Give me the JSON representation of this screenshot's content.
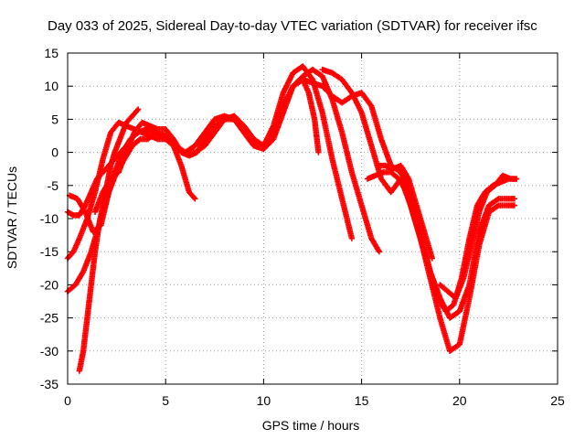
{
  "chart_data": {
    "type": "scatter",
    "title": "Day 033 of 2025, Sidereal Day-to-day VTEC variation (SDTVAR) for receiver ifsc",
    "xlabel": "GPS time / hours",
    "ylabel": "SDTVAR / TECUs",
    "xlim": [
      0,
      25
    ],
    "ylim": [
      -35,
      15
    ],
    "x_ticks": [
      0,
      5,
      10,
      15,
      20,
      25
    ],
    "y_ticks": [
      -35,
      -30,
      -25,
      -20,
      -15,
      -10,
      -5,
      0,
      5,
      10,
      15
    ],
    "grid": true,
    "legend": "none",
    "marker": "plus",
    "color": "#ff0000",
    "series": [
      {
        "x": [
          0.0,
          0.3,
          0.6,
          1.0,
          1.4,
          1.8,
          2.2,
          2.6,
          3.0,
          3.4,
          3.8,
          4.2,
          4.6,
          5.0,
          5.4,
          5.8,
          6.2,
          6.5
        ],
        "y": [
          -16,
          -15,
          -13,
          -10,
          -6,
          -1,
          3,
          4.5,
          4,
          3.5,
          3,
          2.5,
          2,
          2,
          1,
          -2,
          -6,
          -7
        ]
      },
      {
        "x": [
          0.0,
          0.4,
          0.8,
          1.2,
          1.6,
          2.0,
          2.4,
          2.8,
          3.2,
          3.6,
          4.0,
          4.5,
          5.0,
          5.5,
          6.0,
          6.5,
          7.0,
          7.5,
          8.0,
          8.5,
          9.0,
          9.5,
          10.0,
          10.5,
          11.0,
          11.5,
          12.0,
          12.3,
          12.6,
          12.8
        ],
        "y": [
          -21,
          -20,
          -18,
          -15,
          -11,
          -7,
          -3,
          0,
          2,
          3,
          3.5,
          3,
          2.5,
          1,
          0,
          0,
          1,
          3,
          5,
          5,
          3,
          1,
          0.5,
          2,
          6,
          10,
          11,
          9,
          5,
          0
        ]
      },
      {
        "x": [
          0.6,
          0.8,
          1.0,
          1.2,
          1.4,
          1.6,
          1.8,
          2.0,
          2.2,
          2.4,
          2.6,
          2.8,
          3.0,
          3.3,
          3.6
        ],
        "y": [
          -33,
          -30,
          -25,
          -20,
          -15,
          -11,
          -8,
          -5,
          -2,
          0,
          1.5,
          3,
          4.5,
          5.5,
          6.5
        ]
      },
      {
        "x": [
          0.0,
          0.3,
          0.6,
          0.9,
          1.2,
          1.5,
          1.8,
          2.1,
          2.4,
          2.7,
          3.0
        ],
        "y": [
          -9,
          -9.5,
          -9.5,
          -8,
          -6,
          -4,
          -3,
          -2,
          -1,
          0,
          1
        ]
      },
      {
        "x": [
          0.1,
          0.5,
          0.9,
          1.3,
          1.7,
          2.1,
          2.5,
          2.9,
          3.3,
          3.7,
          4.1,
          4.5,
          5.0,
          5.5,
          6.0,
          6.5,
          7.0,
          7.5,
          8.0,
          8.5,
          9.0,
          9.5,
          10.0,
          10.5,
          11.0,
          11.5,
          12.0,
          12.5,
          13.0,
          13.5,
          14.0,
          14.5
        ],
        "y": [
          -6.5,
          -7,
          -9,
          -12,
          -11,
          -6,
          -3,
          -1,
          1,
          2,
          2,
          3,
          2,
          1,
          0,
          1,
          3,
          5,
          5.5,
          5,
          3,
          1,
          1,
          4,
          9,
          12,
          13,
          11,
          6,
          -1,
          -7,
          -13
        ]
      },
      {
        "x": [
          1.4,
          1.8,
          2.2,
          2.6,
          3.0,
          3.4,
          3.8,
          4.2,
          4.6,
          5.0,
          5.4,
          5.8,
          6.2,
          6.6,
          7.0,
          7.5,
          8.0,
          8.5,
          9.0,
          9.5,
          10.0,
          10.5,
          11.0,
          11.5,
          12.0,
          12.5,
          13.0,
          13.5,
          14.0,
          14.5,
          15.0,
          15.5,
          15.9
        ],
        "y": [
          -9,
          -6,
          -4,
          -3,
          0,
          3,
          4.5,
          4,
          3.5,
          3.5,
          2,
          0,
          -0.5,
          0,
          2,
          4,
          5,
          5.5,
          4,
          2,
          1,
          3,
          7,
          10,
          11.5,
          12.5,
          11.5,
          8,
          3,
          -3,
          -8,
          -13,
          -15
        ]
      },
      {
        "x": [
          13.0,
          13.5,
          14.0,
          14.5,
          15.0,
          15.5,
          16.0,
          16.5,
          17.0,
          17.5,
          18.0,
          18.5,
          19.0,
          19.5,
          20.0,
          20.5,
          21.0,
          21.5,
          22.0,
          22.5,
          22.8
        ],
        "y": [
          12.5,
          12,
          11,
          9,
          6,
          1,
          -4,
          -6,
          -4,
          -8,
          -13,
          -19,
          -25,
          -30,
          -29,
          -22,
          -14,
          -9,
          -8,
          -8,
          -8
        ]
      },
      {
        "x": [
          11.5,
          12.0,
          12.5,
          13.0,
          13.5,
          14.0,
          14.5,
          15.0,
          15.5,
          16.0,
          16.5,
          17.0,
          17.5,
          18.0,
          18.5,
          19.0,
          19.5,
          20.0,
          20.5,
          21.0,
          21.5,
          22.0,
          22.5,
          22.8
        ],
        "y": [
          10,
          11,
          10.5,
          10,
          8.5,
          7.5,
          8.5,
          9,
          7,
          2,
          -2,
          -3,
          -6,
          -12,
          -18,
          -22,
          -25,
          -24,
          -20,
          -12,
          -8,
          -7,
          -7,
          -7
        ]
      },
      {
        "x": [
          15.3,
          15.7,
          16.1,
          16.5,
          16.9,
          17.3,
          17.7,
          18.1,
          18.5,
          18.9,
          19.3,
          19.7,
          20.1,
          20.5,
          20.9,
          21.3,
          21.7,
          22.1,
          22.5,
          22.9
        ],
        "y": [
          -4,
          -3.5,
          -3,
          -3,
          -4,
          -6,
          -10,
          -14,
          -18,
          -22,
          -24,
          -23,
          -19,
          -13,
          -8,
          -6,
          -5,
          -4.5,
          -4,
          -4
        ]
      },
      {
        "x": [
          15.8,
          16.2,
          16.6,
          17.0,
          17.4,
          17.8,
          18.2,
          18.6
        ],
        "y": [
          -2,
          -2,
          -2.5,
          -2,
          -4,
          -8,
          -12,
          -16
        ]
      },
      {
        "x": [
          19.0,
          19.4,
          19.8,
          20.2,
          20.6,
          21.0,
          21.4,
          21.8,
          22.2,
          22.6,
          22.9
        ],
        "y": [
          -20,
          -21,
          -22,
          -19,
          -14,
          -9,
          -6,
          -5,
          -3.5,
          -4,
          -4
        ]
      }
    ]
  }
}
